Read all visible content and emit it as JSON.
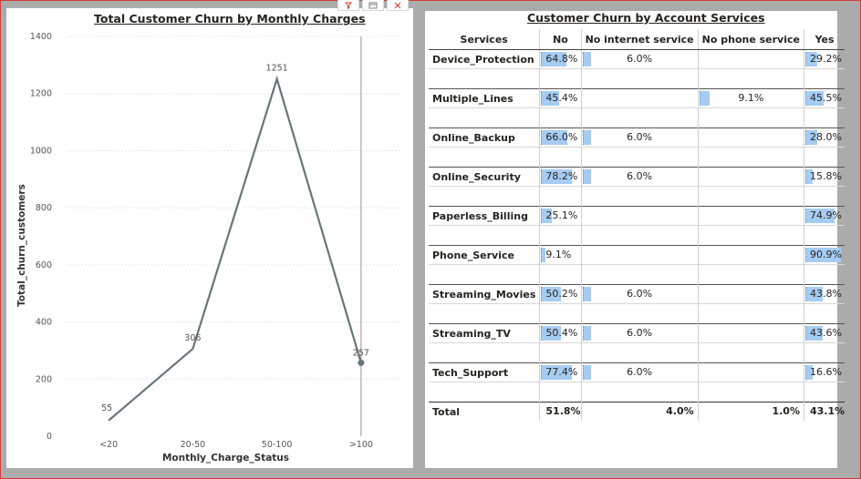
{
  "left_visual": {
    "title": "Total Customer Churn by Monthly Charges",
    "chart_data": {
      "type": "line",
      "title": "Total Customer Churn by Monthly Charges",
      "xlabel": "Monthly_Charge_Status",
      "ylabel": "Total_churn_customers",
      "categories": [
        "<20",
        "20-50",
        "50-100",
        ">100"
      ],
      "values": [
        55,
        306,
        1251,
        257
      ],
      "data_labels": [
        "55",
        "306",
        "1251",
        "257"
      ],
      "ylim": [
        0,
        1400
      ],
      "yticks": [
        "0",
        "200",
        "400",
        "600",
        "800",
        "1000",
        "1200",
        "1400"
      ],
      "grid": true,
      "line_color": "#66767c"
    }
  },
  "right_visual": {
    "title": "Customer Churn by Account Services",
    "columns": [
      "Services",
      "No",
      "No internet service",
      "No phone service",
      "Yes"
    ],
    "rows": [
      {
        "service": "Device_Protection",
        "no": "64.8%",
        "no_internet": "6.0%",
        "no_phone": "",
        "yes": "29.2%"
      },
      {
        "service": "Multiple_Lines",
        "no": "45.4%",
        "no_internet": "",
        "no_phone": "9.1%",
        "yes": "45.5%"
      },
      {
        "service": "Online_Backup",
        "no": "66.0%",
        "no_internet": "6.0%",
        "no_phone": "",
        "yes": "28.0%"
      },
      {
        "service": "Online_Security",
        "no": "78.2%",
        "no_internet": "6.0%",
        "no_phone": "",
        "yes": "15.8%"
      },
      {
        "service": "Paperless_Billing",
        "no": "25.1%",
        "no_internet": "",
        "no_phone": "",
        "yes": "74.9%"
      },
      {
        "service": "Phone_Service",
        "no": "9.1%",
        "no_internet": "",
        "no_phone": "",
        "yes": "90.9%"
      },
      {
        "service": "Streaming_Movies",
        "no": "50.2%",
        "no_internet": "6.0%",
        "no_phone": "",
        "yes": "43.8%"
      },
      {
        "service": "Streaming_TV",
        "no": "50.4%",
        "no_internet": "6.0%",
        "no_phone": "",
        "yes": "43.6%"
      },
      {
        "service": "Tech_Support",
        "no": "77.4%",
        "no_internet": "6.0%",
        "no_phone": "",
        "yes": "16.6%"
      }
    ],
    "total": {
      "label": "Total",
      "no": "51.8%",
      "no_internet": "4.0%",
      "no_phone": "1.0%",
      "yes": "43.1%"
    },
    "bar_color": "#a6ccf2"
  },
  "visual_header_icons": [
    "filter-icon",
    "focus-mode-icon",
    "more-options-icon"
  ]
}
